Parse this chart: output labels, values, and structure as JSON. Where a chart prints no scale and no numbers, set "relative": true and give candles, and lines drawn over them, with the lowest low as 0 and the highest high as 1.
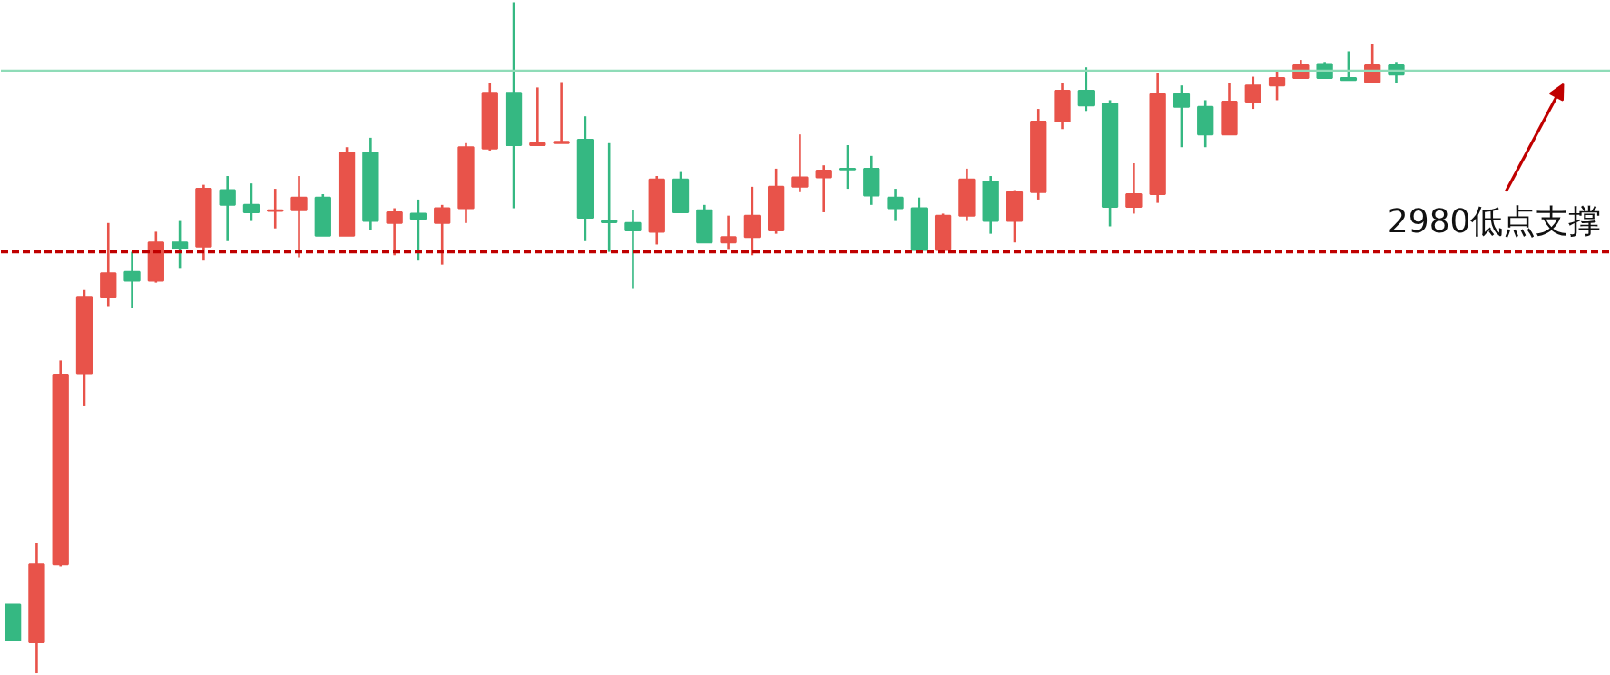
{
  "chart_data": {
    "type": "candlestick",
    "relative": true,
    "grid": false,
    "categories": [
      null,
      null,
      null,
      null,
      null,
      null,
      null,
      null,
      null,
      null,
      null,
      null,
      null,
      null,
      null,
      null,
      null,
      null,
      null,
      null,
      null,
      null,
      null,
      null,
      null,
      null,
      null,
      null,
      null,
      null,
      null,
      null,
      null,
      null,
      null,
      null,
      null,
      null,
      null,
      null,
      null,
      null,
      null,
      null,
      null,
      null,
      null,
      null,
      null,
      null,
      null,
      null,
      null,
      null,
      null,
      null,
      null,
      null,
      null
    ],
    "ohlc": [
      [
        0.102,
        0.102,
        0.049,
        0.049
      ],
      [
        0.046,
        0.194,
        0,
        0.162
      ],
      [
        0.162,
        0.466,
        0.159,
        0.445
      ],
      [
        0.447,
        0.571,
        0.399,
        0.561
      ],
      [
        0.561,
        0.671,
        0.547,
        0.596
      ],
      [
        0.598,
        0.628,
        0.544,
        0.585
      ],
      [
        0.585,
        0.658,
        0.582,
        0.642
      ],
      [
        0.642,
        0.674,
        0.604,
        0.633
      ],
      [
        0.636,
        0.728,
        0.615,
        0.722
      ],
      [
        0.72,
        0.741,
        0.644,
        0.698
      ],
      [
        0.698,
        0.73,
        0.674,
        0.687
      ],
      [
        0.689,
        0.722,
        0.663,
        0.69
      ],
      [
        0.69,
        0.741,
        0.62,
        0.709
      ],
      [
        0.709,
        0.714,
        0.652,
        0.652
      ],
      [
        0.652,
        0.784,
        0.652,
        0.776
      ],
      [
        0.776,
        0.798,
        0.66,
        0.674
      ],
      [
        0.671,
        0.693,
        0.623,
        0.687
      ],
      [
        0.685,
        0.706,
        0.615,
        0.677
      ],
      [
        0.671,
        0.698,
        0.609,
        0.693
      ],
      [
        0.693,
        0.79,
        0.671,
        0.784
      ],
      [
        0.782,
        0.879,
        0.779,
        0.865
      ],
      [
        0.865,
        1,
        0.693,
        0.787
      ],
      [
        0.787,
        0.873,
        0.787,
        0.79
      ],
      [
        0.79,
        0.881,
        0.79,
        0.792
      ],
      [
        0.795,
        0.83,
        0.644,
        0.679
      ],
      [
        0.674,
        0.79,
        0.628,
        0.672
      ],
      [
        0.671,
        0.69,
        0.574,
        0.66
      ],
      [
        0.658,
        0.741,
        0.639,
        0.736
      ],
      [
        0.736,
        0.747,
        0.687,
        0.687
      ],
      [
        0.69,
        0.698,
        0.642,
        0.642
      ],
      [
        0.642,
        0.682,
        0.631,
        0.65
      ],
      [
        0.65,
        0.725,
        0.623,
        0.682
      ],
      [
        0.66,
        0.752,
        0.655,
        0.725
      ],
      [
        0.725,
        0.803,
        0.717,
        0.739
      ],
      [
        0.739,
        0.757,
        0.687,
        0.749
      ],
      [
        0.752,
        0.787,
        0.722,
        0.751
      ],
      [
        0.752,
        0.771,
        0.698,
        0.712
      ],
      [
        0.709,
        0.722,
        0.674,
        0.693
      ],
      [
        0.693,
        0.709,
        0.631,
        0.631
      ],
      [
        0.631,
        0.685,
        0.631,
        0.682
      ],
      [
        0.682,
        0.752,
        0.674,
        0.736
      ],
      [
        0.733,
        0.741,
        0.655,
        0.674
      ],
      [
        0.674,
        0.72,
        0.642,
        0.717
      ],
      [
        0.717,
        0.841,
        0.706,
        0.822
      ],
      [
        0.822,
        0.879,
        0.811,
        0.868
      ],
      [
        0.868,
        0.903,
        0.838,
        0.846
      ],
      [
        0.849,
        0.854,
        0.666,
        0.695
      ],
      [
        0.695,
        0.76,
        0.685,
        0.714
      ],
      [
        0.714,
        0.895,
        0.701,
        0.863
      ],
      [
        0.863,
        0.876,
        0.784,
        0.844
      ],
      [
        0.844,
        0.854,
        0.784,
        0.803
      ],
      [
        0.803,
        0.879,
        0.803,
        0.852
      ],
      [
        0.852,
        0.889,
        0.841,
        0.876
      ],
      [
        0.876,
        0.898,
        0.854,
        0.887
      ],
      [
        0.887,
        0.914,
        0.887,
        0.906
      ],
      [
        0.908,
        0.911,
        0.887,
        0.887
      ],
      [
        0.887,
        0.927,
        0.884,
        0.884
      ],
      [
        0.881,
        0.938,
        0.879,
        0.906
      ],
      [
        0.906,
        0.911,
        0.879,
        0.892
      ]
    ],
    "colors": [
      "#35b882",
      "#e8534a",
      "#e8534a",
      "#e8534a",
      "#e8534a",
      "#35b882",
      "#e8534a",
      "#35b882",
      "#e8534a",
      "#35b882",
      "#35b882",
      "#e8534a",
      "#e8534a",
      "#35b882",
      "#e8534a",
      "#35b882",
      "#e8534a",
      "#35b882",
      "#e8534a",
      "#e8534a",
      "#e8534a",
      "#35b882",
      "#e8534a",
      "#e8534a",
      "#35b882",
      "#35b882",
      "#35b882",
      "#e8534a",
      "#35b882",
      "#35b882",
      "#e8534a",
      "#e8534a",
      "#e8534a",
      "#e8534a",
      "#e8534a",
      "#35b882",
      "#35b882",
      "#35b882",
      "#35b882",
      "#e8534a",
      "#e8534a",
      "#35b882",
      "#e8534a",
      "#e8534a",
      "#e8534a",
      "#35b882",
      "#35b882",
      "#e8534a",
      "#e8534a",
      "#35b882",
      "#35b882",
      "#e8534a",
      "#e8534a",
      "#e8534a",
      "#e8534a",
      "#35b882",
      "#35b882",
      "#e8534a",
      "#35b882"
    ],
    "ref_lines": [
      {
        "axis": "y",
        "value": 0.898,
        "color": "#8fdcb8",
        "line_style": "solid"
      },
      {
        "axis": "y",
        "value": 0.628,
        "label": "2980低点支撑",
        "color": "#c00000",
        "line_style": "dashed"
      }
    ]
  }
}
